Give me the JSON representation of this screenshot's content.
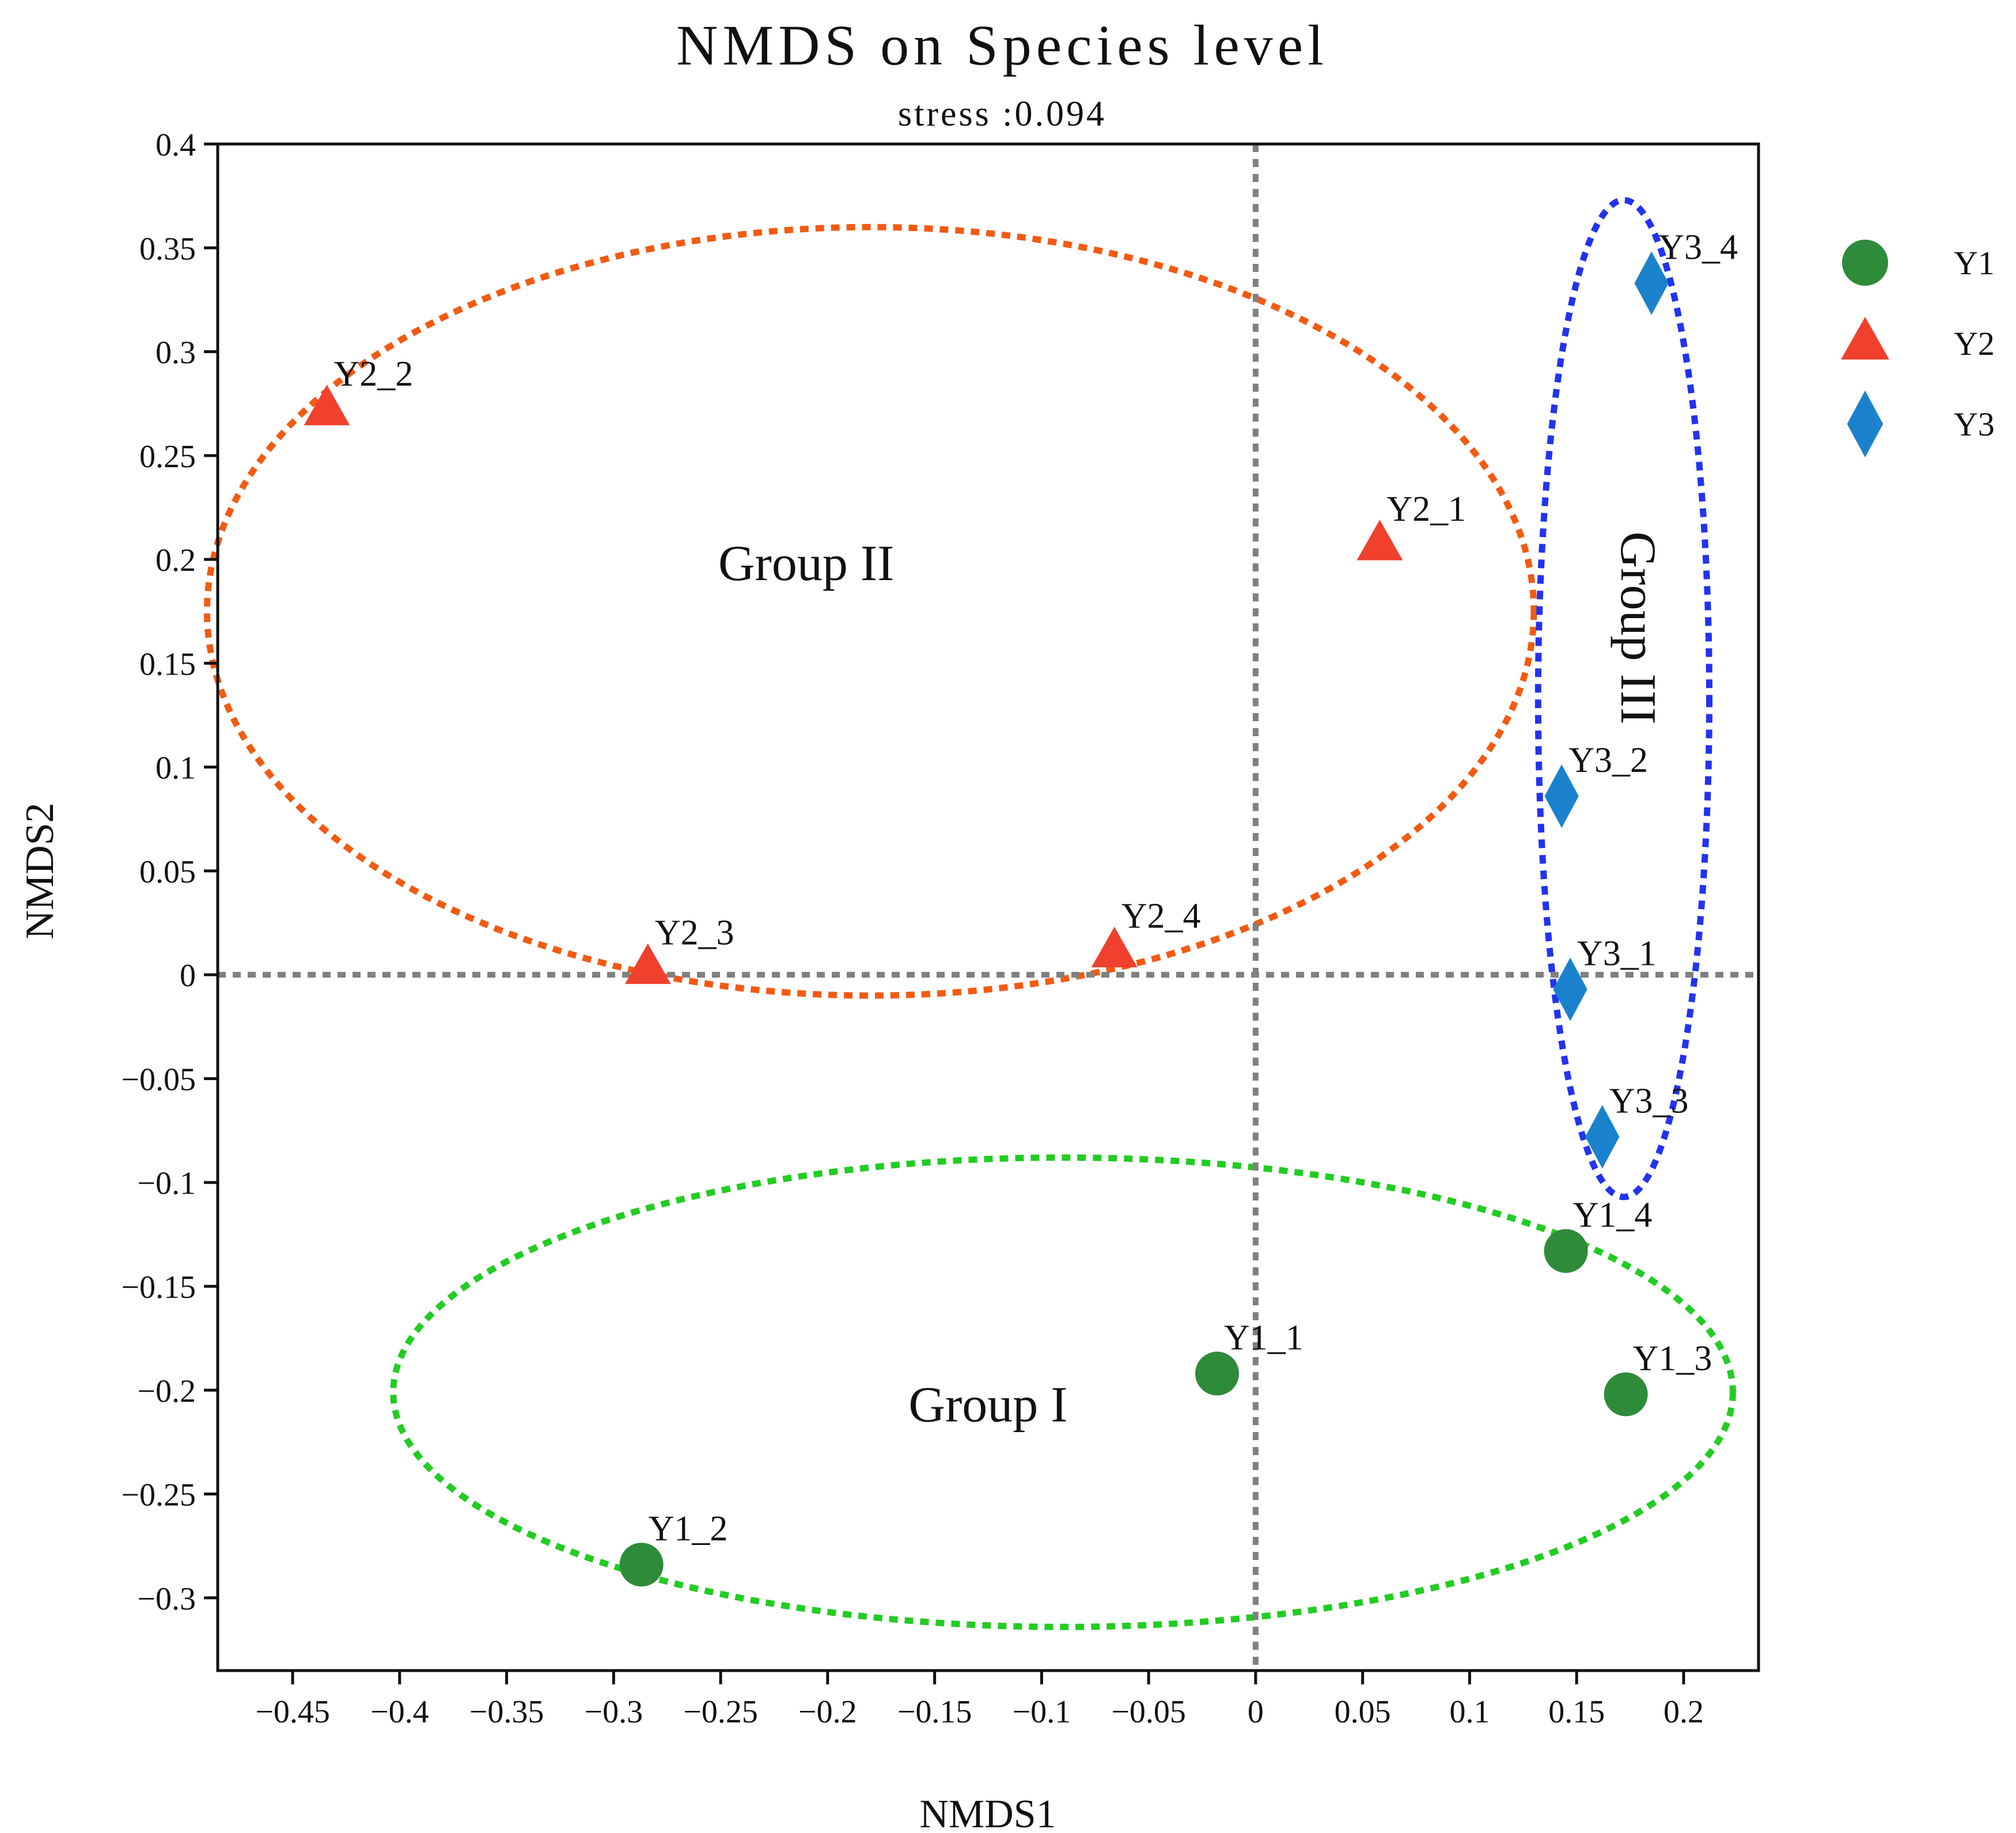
{
  "chart_data": {
    "type": "scatter",
    "title": "NMDS on Species level",
    "subtitle": "stress :0.094",
    "xlabel": "NMDS1",
    "ylabel": "NMDS2",
    "xlim": [
      -0.485,
      0.235
    ],
    "ylim": [
      -0.335,
      0.4
    ],
    "xticks": [
      -0.45,
      -0.4,
      -0.35,
      -0.3,
      -0.25,
      -0.2,
      -0.15,
      -0.1,
      -0.05,
      0,
      0.05,
      0.1,
      0.15,
      0.2
    ],
    "xtick_labels": [
      "−0.45",
      "−0.4",
      "−0.35",
      "−0.3",
      "−0.25",
      "−0.2",
      "−0.15",
      "−0.1",
      "−0.05",
      "0",
      "0.05",
      "0.1",
      "0.15",
      "0.2"
    ],
    "yticks": [
      0.4,
      0.35,
      0.3,
      0.25,
      0.2,
      0.15,
      0.1,
      0.05,
      0,
      -0.05,
      -0.1,
      -0.15,
      -0.2,
      -0.25,
      -0.3
    ],
    "ytick_labels": [
      "0.4",
      "0.35",
      "0.3",
      "0.25",
      "0.2",
      "0.15",
      "0.1",
      "0.05",
      "0",
      "−0.05",
      "−0.1",
      "−0.15",
      "−0.2",
      "−0.25",
      "−0.3"
    ],
    "reference_lines": {
      "x": 0,
      "y": 0,
      "color": "#808080",
      "style": "dotted"
    },
    "legend_position": "top-right, outside plot",
    "series": [
      {
        "name": "Y1",
        "marker": "circle",
        "color": "#2e8b3a",
        "points": [
          {
            "label": "Y1_1",
            "x": -0.018,
            "y": -0.192
          },
          {
            "label": "Y1_2",
            "x": -0.287,
            "y": -0.284
          },
          {
            "label": "Y1_3",
            "x": 0.173,
            "y": -0.202
          },
          {
            "label": "Y1_4",
            "x": 0.145,
            "y": -0.133
          }
        ]
      },
      {
        "name": "Y2",
        "marker": "triangle",
        "color": "#f0402e",
        "points": [
          {
            "label": "Y2_1",
            "x": 0.058,
            "y": 0.207
          },
          {
            "label": "Y2_2",
            "x": -0.434,
            "y": 0.272
          },
          {
            "label": "Y2_3",
            "x": -0.284,
            "y": 0.003
          },
          {
            "label": "Y2_4",
            "x": -0.066,
            "y": 0.011
          }
        ]
      },
      {
        "name": "Y3",
        "marker": "diamond",
        "color": "#1a82cc",
        "points": [
          {
            "label": "Y3_1",
            "x": 0.147,
            "y": -0.007
          },
          {
            "label": "Y3_2",
            "x": 0.143,
            "y": 0.086
          },
          {
            "label": "Y3_3",
            "x": 0.162,
            "y": -0.078
          },
          {
            "label": "Y3_4",
            "x": 0.185,
            "y": 0.333
          }
        ]
      }
    ],
    "groups": [
      {
        "label": "Group I",
        "color": "#22cc22",
        "rotated": false,
        "cx": -0.09,
        "cy": -0.201,
        "rx": 0.313,
        "ry": 0.113,
        "label_x": -0.125,
        "label_y": -0.215
      },
      {
        "label": "Group II",
        "color": "#f25a12",
        "rotated": false,
        "cx": -0.18,
        "cy": 0.175,
        "rx": 0.31,
        "ry": 0.185,
        "label_x": -0.21,
        "label_y": 0.19
      },
      {
        "label": "Group III",
        "color": "#2233ee",
        "rotated": true,
        "cx": 0.172,
        "cy": 0.133,
        "rx": 0.04,
        "ry": 0.24,
        "label_x": 0.171,
        "label_y": 0.167
      }
    ]
  }
}
